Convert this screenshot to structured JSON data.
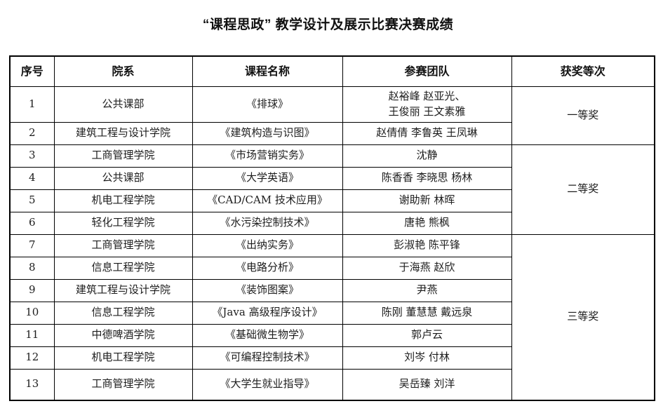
{
  "page": {
    "title": "“课程思政” 教学设计及展示比赛决赛成绩"
  },
  "table": {
    "headers": [
      "序号",
      "院系",
      "课程名称",
      "参赛团队",
      "获奖等次"
    ],
    "rows": [
      {
        "no": "1",
        "department": "公共课部",
        "course": "《排球》",
        "team": "赵裕峰  赵亚光、\n王俊丽  王文素雅",
        "award": {
          "label": "一等奖",
          "rowspan": 2
        }
      },
      {
        "no": "2",
        "department": "建筑工程与设计学院",
        "course": "《建筑构造与识图》",
        "team": "赵倩倩  李鲁英  王凤琳"
      },
      {
        "no": "3",
        "department": "工商管理学院",
        "course": "《市场营销实务》",
        "team": "沈静",
        "award": {
          "label": "二等奖",
          "rowspan": 4
        }
      },
      {
        "no": "4",
        "department": "公共课部",
        "course": "《大学英语》",
        "team": "陈香香  李晓思  杨林"
      },
      {
        "no": "5",
        "department": "机电工程学院",
        "course": "《CAD/CAM 技术应用》",
        "team": "谢助新  林晖"
      },
      {
        "no": "6",
        "department": "轻化工程学院",
        "course": "《水污染控制技术》",
        "team": "唐艳  熊枫"
      },
      {
        "no": "7",
        "department": "工商管理学院",
        "course": "《出纳实务》",
        "team": "彭淑艳  陈平锋",
        "award": {
          "label": "三等奖",
          "rowspan": 7
        }
      },
      {
        "no": "8",
        "department": "信息工程学院",
        "course": "《电路分析》",
        "team": "于海燕  赵欣"
      },
      {
        "no": "9",
        "department": "建筑工程与设计学院",
        "course": "《装饰图案》",
        "team": "尹燕"
      },
      {
        "no": "10",
        "department": "信息工程学院",
        "course": "《Java 高级程序设计》",
        "team": "陈刚  董慧慧  戴远泉"
      },
      {
        "no": "11",
        "department": "中德啤酒学院",
        "course": "《基础微生物学》",
        "team": "郭卢云"
      },
      {
        "no": "12",
        "department": "机电工程学院",
        "course": "《可编程控制技术》",
        "team": "刘岑  付林"
      },
      {
        "no": "13",
        "department": "工商管理学院",
        "course": "《大学生就业指导》",
        "team": "吴岳臻  刘洋"
      }
    ]
  }
}
